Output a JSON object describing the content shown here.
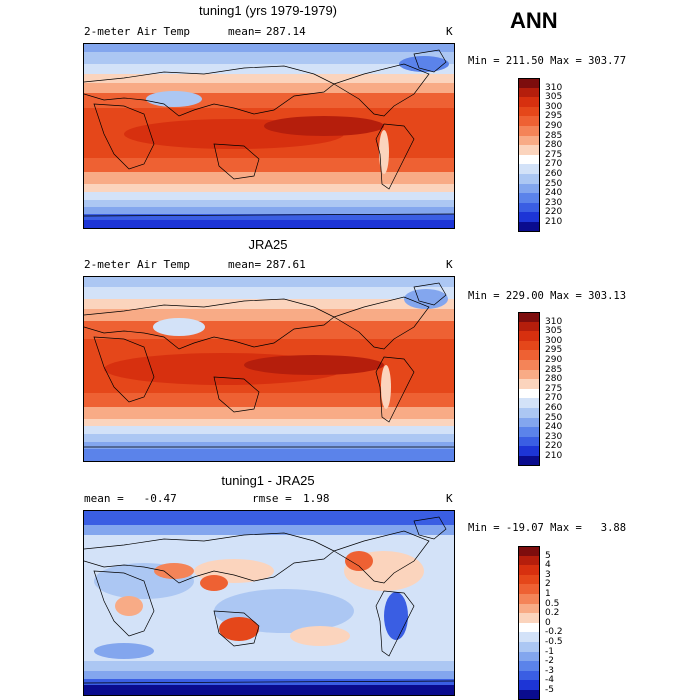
{
  "header": {
    "season": "ANN"
  },
  "panels": [
    {
      "title": "tuning1 (yrs 1979-1979)",
      "left_label": "2-meter Air Temp",
      "stat_label": "mean=",
      "stat_value": "287.14",
      "unit": "K",
      "minmax": "Min = 211.50 Max = 303.77",
      "colorbar": {
        "labels": [
          "310",
          "305",
          "300",
          "295",
          "290",
          "285",
          "280",
          "275",
          "270",
          "260",
          "250",
          "240",
          "230",
          "220",
          "210"
        ],
        "colors": [
          "#7d0d0d",
          "#b51e0c",
          "#d7300f",
          "#e5471a",
          "#ee6133",
          "#f48458",
          "#f8ab86",
          "#fbd4bd",
          "#ffffff",
          "#d3e2f8",
          "#acc7f3",
          "#83a6ee",
          "#5b83ea",
          "#3a5ee3",
          "#1d35d6",
          "#0a0c8e"
        ]
      }
    },
    {
      "title": "JRA25",
      "left_label": "2-meter Air Temp",
      "stat_label": "mean=",
      "stat_value": "287.61",
      "unit": "K",
      "minmax": "Min = 229.00 Max = 303.13",
      "colorbar": {
        "labels": [
          "310",
          "305",
          "300",
          "295",
          "290",
          "285",
          "280",
          "275",
          "270",
          "260",
          "250",
          "240",
          "230",
          "220",
          "210"
        ],
        "colors": [
          "#7d0d0d",
          "#b51e0c",
          "#d7300f",
          "#e5471a",
          "#ee6133",
          "#f48458",
          "#f8ab86",
          "#fbd4bd",
          "#ffffff",
          "#d3e2f8",
          "#acc7f3",
          "#83a6ee",
          "#5b83ea",
          "#3a5ee3",
          "#1d35d6",
          "#0a0c8e"
        ]
      }
    },
    {
      "title": "tuning1 - JRA25",
      "left_label": "mean =   -0.47",
      "stat_label": "rmse =",
      "stat_value": "1.98",
      "unit": "K",
      "minmax": "Min = -19.07 Max =   3.88",
      "colorbar": {
        "labels": [
          "5",
          "4",
          "3",
          "2",
          "1",
          "0.5",
          "0.2",
          "0",
          "-0.2",
          "-0.5",
          "-1",
          "-2",
          "-3",
          "-4",
          "-5"
        ],
        "colors": [
          "#7d0d0d",
          "#b51e0c",
          "#d7300f",
          "#e5471a",
          "#ee6133",
          "#f48458",
          "#f8ab86",
          "#fbd4bd",
          "#ffffff",
          "#d3e2f8",
          "#acc7f3",
          "#83a6ee",
          "#5b83ea",
          "#3a5ee3",
          "#1d35d6",
          "#0a0c8e"
        ]
      }
    }
  ]
}
